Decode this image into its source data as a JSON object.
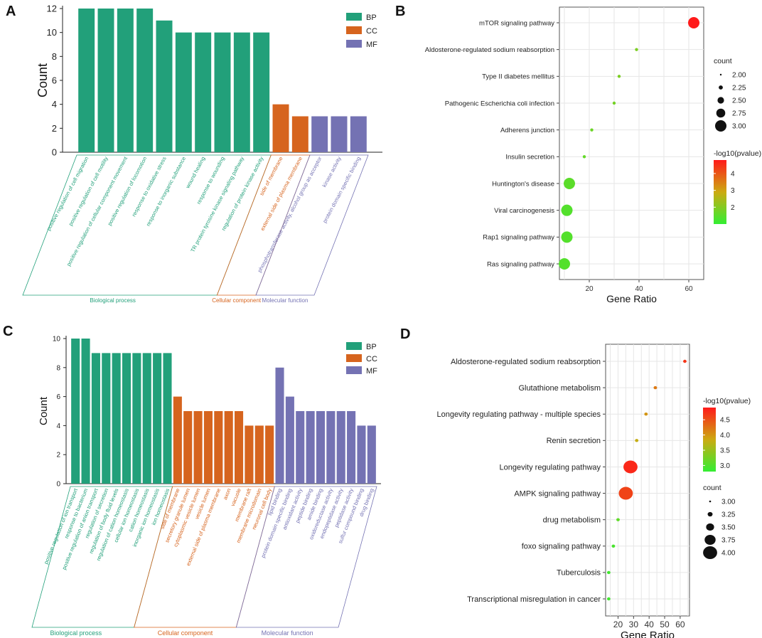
{
  "colors": {
    "BP": "#22a07a",
    "CC": "#d6641e",
    "MF": "#7472b3",
    "grad_low": "#33ee33",
    "grad_high": "#ff1a1a"
  },
  "chart_data": [
    {
      "panel": "A",
      "type": "bar",
      "ylabel": "Count",
      "ylim": [
        0,
        12
      ],
      "yticks": [
        0,
        2,
        4,
        6,
        8,
        10,
        12
      ],
      "legend": [
        "BP",
        "CC",
        "MF"
      ],
      "categories": [
        "positive regulation of cell migration",
        "positive regulation of cell motility",
        "positive regulation of cellular component movement",
        "positive regulation of locomotion",
        "response to oxidative stress",
        "response to inorganic substance",
        "wound healing",
        "response to wounding",
        "TR protein tyrosine kinase signaling pathway",
        "regulation of protein kinase activity",
        "side of membrane",
        "external side of plasma membrane",
        "phosphotransferase activity, alcohol group as acceptor",
        "kinase activity",
        "protein domain specific binding"
      ],
      "values": [
        12,
        12,
        12,
        12,
        11,
        10,
        10,
        10,
        10,
        10,
        4,
        3,
        3,
        3,
        3
      ],
      "groups": [
        "BP",
        "BP",
        "BP",
        "BP",
        "BP",
        "BP",
        "BP",
        "BP",
        "BP",
        "BP",
        "CC",
        "CC",
        "MF",
        "MF",
        "MF"
      ],
      "group_labels": [
        "Biological process",
        "Cellular component",
        "Molecular function"
      ]
    },
    {
      "panel": "B",
      "type": "scatter",
      "xlabel": "Gene Ratio",
      "xlim": [
        8,
        66
      ],
      "xticks": [
        20,
        40,
        60
      ],
      "terms": [
        "mTOR signaling pathway",
        "Aldosterone-regulated sodium reabsorption",
        "Type II diabetes mellitus",
        "Pathogenic Escherichia coli infection",
        "Adherens junction",
        "Insulin secretion",
        "Huntington's disease",
        "Viral carcinogenesis",
        "Rap1 signaling pathway",
        "Ras signaling pathway"
      ],
      "x": [
        62,
        39,
        32,
        30,
        21,
        18,
        12,
        11,
        11,
        10
      ],
      "count": [
        3,
        2,
        2,
        2,
        2,
        2,
        3,
        3,
        3,
        3
      ],
      "neglog10p": [
        4.8,
        1.9,
        1.9,
        1.8,
        1.7,
        1.6,
        1.5,
        1.4,
        1.4,
        1.4
      ],
      "size_legend_title": "count",
      "size_legend": [
        "2.00",
        "2.25",
        "2.50",
        "2.75",
        "3.00"
      ],
      "color_legend_title": "-log10(pvalue)",
      "color_ticks": [
        "4",
        "3",
        "2"
      ],
      "color_range": [
        1.0,
        4.8
      ]
    },
    {
      "panel": "C",
      "type": "bar",
      "ylabel": "Count",
      "ylim": [
        0,
        10
      ],
      "yticks": [
        0,
        2,
        4,
        6,
        8,
        10
      ],
      "legend": [
        "BP",
        "CC",
        "MF"
      ],
      "categories": [
        "positive regulation of ion transport",
        "response to bacterium",
        "positive regulation of anion transport",
        "regulation of secretion",
        "regulation of body fluid levels",
        "regulation of cation homeostasis",
        "cellular ion homeostasis",
        "cation homeostasis",
        "inorganic ion homeostasis",
        "ion homeostasis",
        "side of membrane",
        "secretory granule lumen",
        "cytoplasmic vesicle lumen",
        "vesicle lumen",
        "external side of plasma membrane",
        "axon",
        "vacuole",
        "membrane raft",
        "membrane microdomain",
        "neuronal cell body",
        "lipid binding",
        "protein domain specific binding",
        "antioxidant activity",
        "peptide binding",
        "amide binding",
        "oxidoreductase activity",
        "endopeptidase activity",
        "peptidase activity",
        "sulfur compound binding",
        "drug binding"
      ],
      "values": [
        10,
        10,
        9,
        9,
        9,
        9,
        9,
        9,
        9,
        9,
        6,
        5,
        5,
        5,
        5,
        5,
        5,
        4,
        4,
        4,
        8,
        6,
        5,
        5,
        5,
        5,
        5,
        5,
        4,
        4
      ],
      "groups": [
        "BP",
        "BP",
        "BP",
        "BP",
        "BP",
        "BP",
        "BP",
        "BP",
        "BP",
        "BP",
        "CC",
        "CC",
        "CC",
        "CC",
        "CC",
        "CC",
        "CC",
        "CC",
        "CC",
        "CC",
        "MF",
        "MF",
        "MF",
        "MF",
        "MF",
        "MF",
        "MF",
        "MF",
        "MF",
        "MF"
      ],
      "group_labels": [
        "Biological process",
        "Cellular component",
        "Molecular function"
      ]
    },
    {
      "panel": "D",
      "type": "scatter",
      "xlabel": "Gene Ratio",
      "xlim": [
        12,
        66
      ],
      "xticks": [
        20,
        30,
        40,
        50,
        60
      ],
      "terms": [
        "Aldosterone-regulated sodium reabsorption",
        "Glutathione metabolism",
        "Longevity regulating pathway - multiple species",
        "Renin secretion",
        "Longevity regulating pathway",
        "AMPK signaling pathway",
        "drug metabolism",
        "foxo signaling pathway",
        "Tuberculosis",
        "Transcriptional misregulation in cancer"
      ],
      "x": [
        63,
        44,
        38,
        32,
        28,
        25,
        20,
        17,
        14,
        14
      ],
      "count": [
        3,
        3,
        3,
        3,
        4,
        4,
        3,
        3,
        3,
        3
      ],
      "neglog10p": [
        4.7,
        4.2,
        4.0,
        3.8,
        4.8,
        4.6,
        3.1,
        2.95,
        2.9,
        2.9
      ],
      "size_legend_title": "count",
      "size_legend": [
        "3.00",
        "3.25",
        "3.50",
        "3.75",
        "4.00"
      ],
      "color_legend_title": "-log10(pvalue)",
      "color_ticks": [
        "4.5",
        "4.0",
        "3.5",
        "3.0"
      ],
      "color_range": [
        2.8,
        4.9
      ]
    }
  ],
  "panel_labels": [
    "A",
    "B",
    "C",
    "D"
  ]
}
